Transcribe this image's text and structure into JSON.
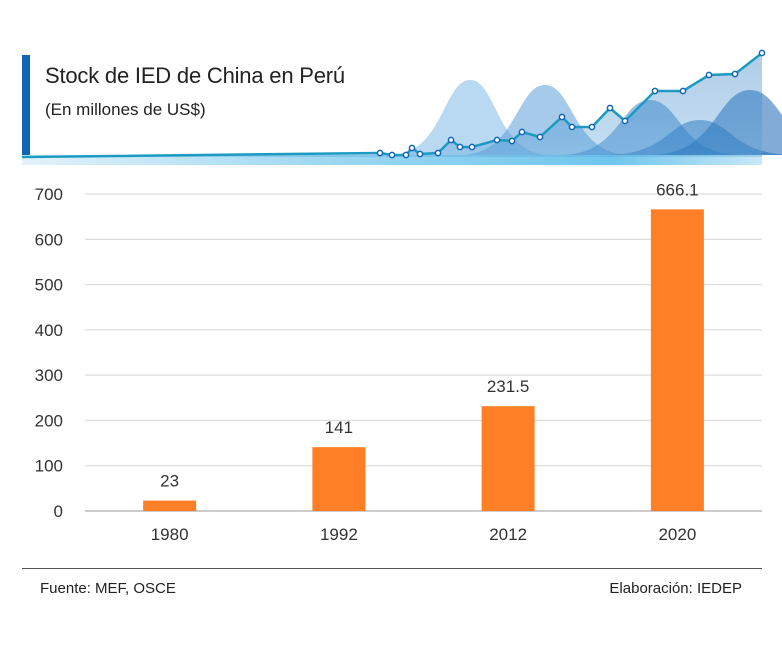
{
  "header": {
    "title": "Stock de IED de China en Perú",
    "subtitle": "(En millones de US$)"
  },
  "chart_data": {
    "type": "bar",
    "title": "Stock de IED de China en Perú",
    "subtitle": "(En millones de US$)",
    "categories": [
      "1980",
      "1992",
      "2012",
      "2020"
    ],
    "values": [
      23,
      141,
      231.5,
      666.1
    ],
    "value_labels": [
      "23",
      "141",
      "231.5",
      "666.1"
    ],
    "ylim": [
      0,
      700
    ],
    "yticks": [
      0,
      100,
      200,
      300,
      400,
      500,
      600,
      700
    ],
    "xlabel": "",
    "ylabel": "",
    "grid": true,
    "bar_color": "#ff7f27"
  },
  "footer": {
    "source": "Fuente: MEF, OSCE",
    "credit": "Elaboración: IEDEP"
  }
}
